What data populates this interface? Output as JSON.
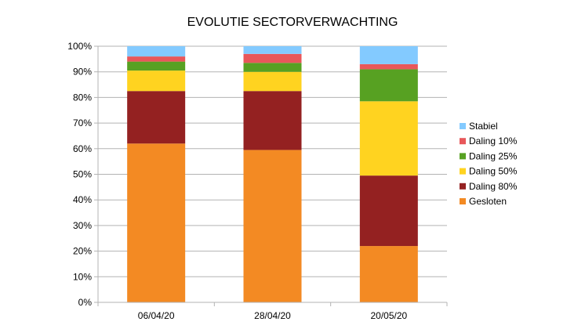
{
  "chart_data": {
    "type": "bar",
    "stacked": true,
    "percent": true,
    "title": "EVOLUTIE SECTORVERWACHTING",
    "xlabel": "",
    "ylabel": "",
    "categories": [
      "06/04/20",
      "28/04/20",
      "20/05/20"
    ],
    "y_ticks": [
      "0%",
      "10%",
      "20%",
      "30%",
      "40%",
      "50%",
      "60%",
      "70%",
      "80%",
      "90%",
      "100%"
    ],
    "ylim": [
      0,
      100
    ],
    "grid": true,
    "legend_position": "right",
    "series": [
      {
        "name": "Gesloten",
        "color": "#F38A23",
        "values": [
          62,
          59.5,
          22
        ]
      },
      {
        "name": "Daling 80%",
        "color": "#942121",
        "values": [
          20.5,
          23,
          27.5
        ]
      },
      {
        "name": "Daling 50%",
        "color": "#FFD320",
        "values": [
          8,
          7.5,
          29
        ]
      },
      {
        "name": "Daling 25%",
        "color": "#57A122",
        "values": [
          3.5,
          3.5,
          12.5
        ]
      },
      {
        "name": "Daling 10%",
        "color": "#E8575A",
        "values": [
          2,
          3.5,
          2
        ]
      },
      {
        "name": "Stabiel",
        "color": "#83CAFF",
        "values": [
          4,
          3,
          7
        ]
      }
    ]
  }
}
